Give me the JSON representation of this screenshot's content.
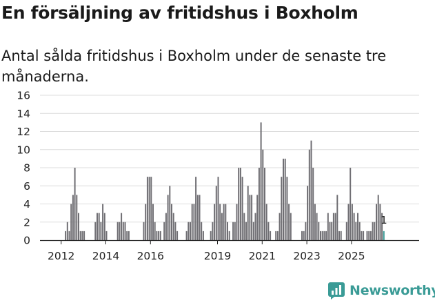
{
  "title": "En försäljning av fritidshus i Boxholm",
  "subtitle": "Antal sålda fritidshus i Boxholm under de senaste tre månaderna.",
  "brand": {
    "name": "Newsworthy",
    "icon": "newsworthy-logo-icon",
    "color": "#3a9b96"
  },
  "chart_data": {
    "type": "bar",
    "title": "En försäljning av fritidshus i Boxholm",
    "subtitle": "Antal sålda fritidshus i Boxholm under de senaste tre månaderna.",
    "xlabel": "",
    "ylabel": "",
    "ylim": [
      0,
      16
    ],
    "yticks": [
      0,
      2,
      4,
      6,
      8,
      10,
      12,
      14,
      16
    ],
    "grid": true,
    "bar_color": "#6f6e73",
    "highlight_color": "#3a9b96",
    "x_start": "2011-12",
    "time_unit": "month",
    "xtick_labels": [
      {
        "label": "2012",
        "x": 2012
      },
      {
        "label": "2014",
        "x": 2014
      },
      {
        "label": "2016",
        "x": 2016
      },
      {
        "label": "2019",
        "x": 2019
      },
      {
        "label": "2021",
        "x": 2021
      },
      {
        "label": "2023",
        "x": 2023
      },
      {
        "label": "2025",
        "x": 2025
      }
    ],
    "values": [
      0,
      0,
      0,
      1,
      2,
      1,
      4,
      5,
      8,
      5,
      3,
      1,
      1,
      1,
      0,
      0,
      0,
      0,
      0,
      2,
      3,
      3,
      2,
      4,
      3,
      1,
      0,
      0,
      0,
      0,
      0,
      2,
      2,
      3,
      2,
      2,
      1,
      1,
      0,
      0,
      0,
      0,
      0,
      0,
      0,
      2,
      4,
      7,
      7,
      7,
      4,
      2,
      1,
      1,
      1,
      0,
      2,
      3,
      5,
      6,
      4,
      3,
      2,
      1,
      0,
      0,
      0,
      0,
      1,
      2,
      2,
      4,
      4,
      7,
      5,
      5,
      2,
      1,
      0,
      0,
      0,
      1,
      2,
      4,
      6,
      7,
      4,
      3,
      4,
      4,
      2,
      1,
      0,
      2,
      2,
      4,
      8,
      8,
      7,
      3,
      2,
      6,
      5,
      5,
      2,
      3,
      5,
      8,
      13,
      10,
      8,
      4,
      2,
      1,
      0,
      0,
      1,
      1,
      3,
      7,
      9,
      9,
      7,
      4,
      3,
      0,
      0,
      0,
      0,
      0,
      1,
      1,
      2,
      6,
      10,
      11,
      8,
      4,
      3,
      2,
      1,
      1,
      1,
      1,
      3,
      2,
      2,
      3,
      3,
      5,
      1,
      1,
      0,
      0,
      2,
      4,
      8,
      4,
      3,
      2,
      3,
      2,
      1,
      1,
      0,
      1,
      1,
      1,
      2,
      2,
      4,
      5,
      4,
      3,
      1
    ],
    "last_value_label": "1"
  }
}
